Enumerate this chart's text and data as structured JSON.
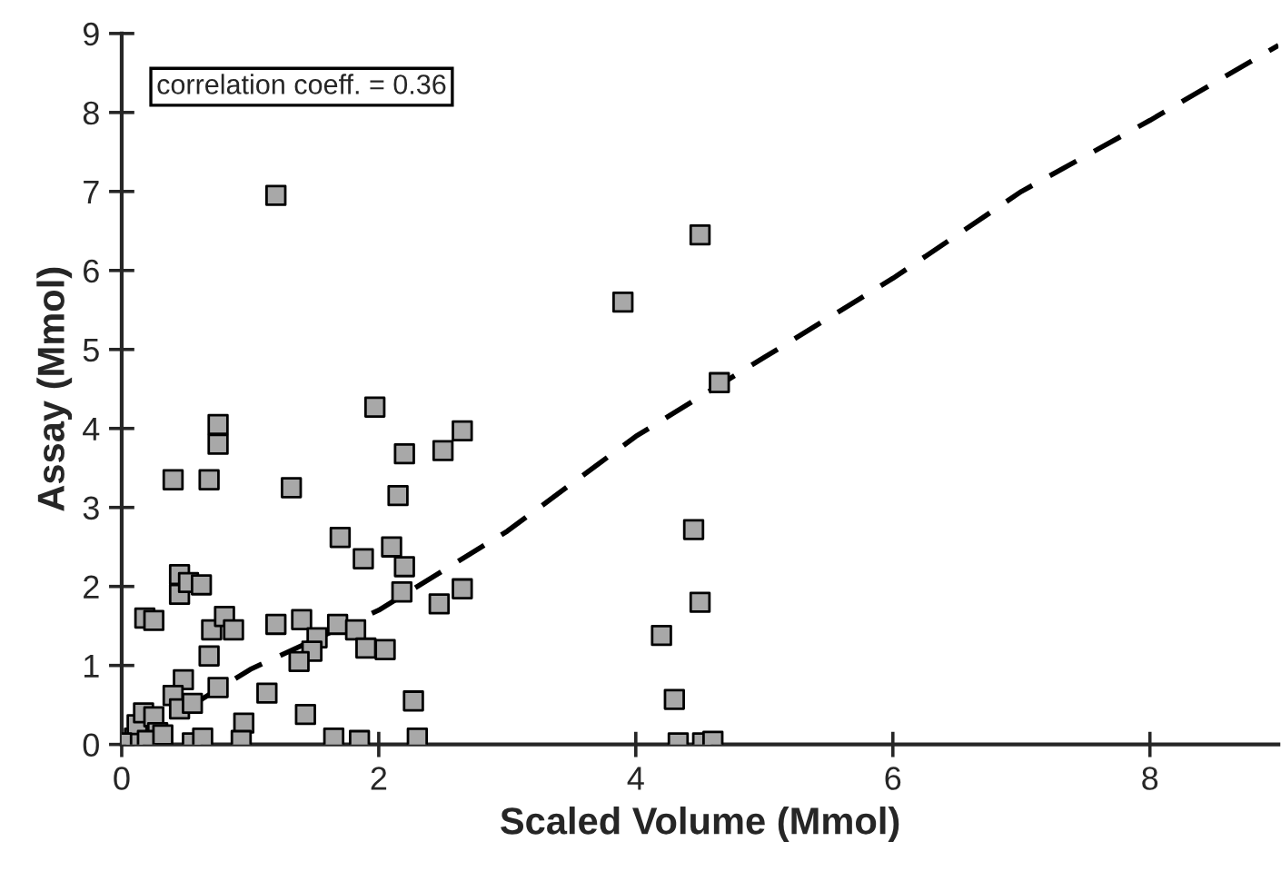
{
  "chart_data": {
    "type": "scatter",
    "xlabel": "Scaled Volume (Mmol)",
    "ylabel": "Assay (Mmol)",
    "annotations": [
      "correlation coeff. = 0.36"
    ],
    "xlim": [
      0,
      9
    ],
    "ylim": [
      0,
      9
    ],
    "xticks": [
      0,
      2,
      4,
      6,
      8
    ],
    "yticks": [
      0,
      1,
      2,
      3,
      4,
      5,
      6,
      7,
      8,
      9
    ],
    "grid": false,
    "marker": "square",
    "series": [
      {
        "color": "#a8a8a8",
        "x": [
          1.2,
          4.5,
          3.9,
          4.65,
          0.75,
          0.75,
          0.4,
          0.68,
          1.32,
          1.97,
          2.2,
          2.5,
          2.65,
          2.15,
          1.7,
          2.1,
          1.88,
          2.2,
          2.18,
          2.65,
          2.47,
          4.45,
          4.5,
          4.2,
          4.3,
          4.33,
          4.52,
          4.6,
          2.27,
          2.3,
          1.85,
          1.65,
          1.43,
          1.13,
          0.95,
          0.93,
          0.55,
          0.63,
          0.75,
          0.48,
          0.4,
          0.45,
          0.55,
          0.18,
          0.25,
          0.45,
          0.45,
          0.52,
          0.62,
          0.7,
          0.8,
          0.87,
          0.68,
          1.2,
          1.4,
          1.52,
          1.48,
          1.38,
          1.68,
          1.82,
          1.9,
          2.05,
          0.1,
          0.12,
          0.17,
          0.25,
          0.28,
          0.2,
          0.32,
          0.0
        ],
        "values": [
          6.95,
          6.45,
          5.6,
          4.58,
          4.05,
          3.8,
          3.35,
          3.35,
          3.25,
          4.27,
          3.68,
          3.72,
          3.97,
          3.15,
          2.62,
          2.5,
          2.35,
          2.25,
          1.93,
          1.97,
          1.78,
          2.72,
          1.8,
          1.38,
          0.57,
          0.02,
          0.02,
          0.04,
          0.55,
          0.08,
          0.05,
          0.08,
          0.38,
          0.65,
          0.27,
          0.05,
          0.02,
          0.08,
          0.72,
          0.82,
          0.62,
          0.45,
          0.52,
          1.6,
          1.57,
          1.9,
          2.15,
          2.05,
          2.02,
          1.45,
          1.62,
          1.45,
          1.12,
          1.52,
          1.58,
          1.35,
          1.18,
          1.05,
          1.52,
          1.45,
          1.22,
          1.2,
          0.08,
          0.25,
          0.4,
          0.35,
          0.15,
          0.05,
          0.12,
          0.02
        ]
      },
      {
        "type": "line",
        "color": "#000000",
        "line_style": "dashed",
        "marker": "none",
        "x": [
          0.55,
          1,
          2,
          3,
          4,
          5,
          6,
          7,
          8,
          9
        ],
        "values": [
          0.5,
          0.95,
          1.7,
          2.7,
          3.9,
          4.9,
          5.9,
          7.0,
          7.9,
          8.85
        ]
      }
    ]
  }
}
